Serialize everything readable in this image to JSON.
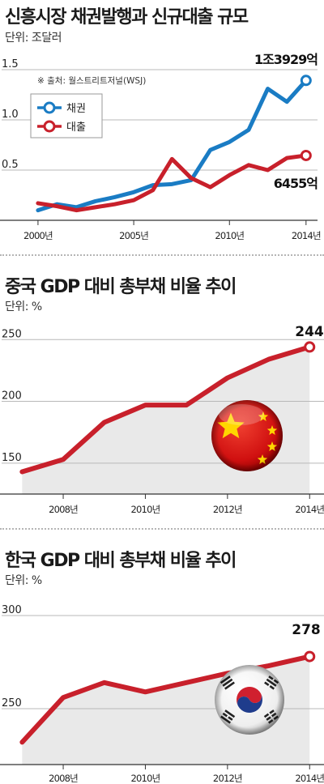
{
  "colors": {
    "bond": "#1a7cc4",
    "loan": "#c8202b",
    "debt": "#c8202b",
    "area": "#e9e9e9",
    "grid": "#b8b8b8"
  },
  "panel1": {
    "title": "신흥시장 채권발행과 신규대출 규모",
    "unit": "단위: 조달러",
    "source": "※ 출처: 월스트리트저널(WSJ)",
    "legend": [
      {
        "name": "채권"
      },
      {
        "name": "대출"
      }
    ],
    "labels": {
      "bond_end": "1조3929억",
      "loan_end": "6455억"
    }
  },
  "panel2": {
    "title": "중국 GDP 대비 총부채 비율 추이",
    "unit": "단위: %",
    "end_label": "244",
    "icon": "china-flag-icon"
  },
  "panel3": {
    "title": "한국 GDP 대비 총부채 비율 추이",
    "unit": "단위: %",
    "end_label": "278",
    "icon": "korea-flag-icon"
  },
  "chart_data": [
    {
      "type": "line",
      "title": "신흥시장 채권발행과 신규대출 규모",
      "x": [
        2000,
        2001,
        2002,
        2003,
        2004,
        2005,
        2006,
        2007,
        2008,
        2009,
        2010,
        2011,
        2012,
        2013,
        2014
      ],
      "xticks": [
        "2000년",
        "2005년",
        "2010년",
        "2014년"
      ],
      "xtick_values": [
        2000,
        2005,
        2010,
        2014
      ],
      "yticks": [
        "0.5",
        "1.0",
        "1.5"
      ],
      "ytick_values": [
        0.5,
        1.0,
        1.5
      ],
      "ylim": [
        0,
        1.5
      ],
      "xlim": [
        1999.2,
        2014.6
      ],
      "series": [
        {
          "name": "채권",
          "values": [
            0.1,
            0.16,
            0.13,
            0.19,
            0.23,
            0.28,
            0.35,
            0.36,
            0.4,
            0.7,
            0.78,
            0.9,
            1.31,
            1.18,
            1.3929
          ]
        },
        {
          "name": "대출",
          "values": [
            0.17,
            0.14,
            0.1,
            0.13,
            0.16,
            0.2,
            0.3,
            0.61,
            0.42,
            0.33,
            0.45,
            0.55,
            0.5,
            0.62,
            0.6455
          ]
        }
      ]
    },
    {
      "type": "area",
      "title": "중국 GDP 대비 총부채 비율 추이",
      "x": [
        2007,
        2008,
        2009,
        2010,
        2011,
        2012,
        2013,
        2014
      ],
      "xticks": [
        "2008년",
        "2010년",
        "2012년",
        "2014년"
      ],
      "xtick_values": [
        2008,
        2010,
        2012,
        2014
      ],
      "yticks": [
        "150",
        "200",
        "250"
      ],
      "ytick_values": [
        150,
        200,
        250
      ],
      "ylim": [
        125,
        260
      ],
      "xlim": [
        2006.5,
        2014.35
      ],
      "series": [
        {
          "name": "",
          "values": [
            143,
            153,
            183,
            197,
            197,
            219,
            234,
            244
          ]
        }
      ]
    },
    {
      "type": "area",
      "title": "한국 GDP 대비 총부채 비율 추이",
      "x": [
        2007,
        2008,
        2009,
        2010,
        2011,
        2012,
        2013,
        2014
      ],
      "xticks": [
        "2008년",
        "2010년",
        "2012년",
        "2014년"
      ],
      "xtick_values": [
        2008,
        2010,
        2012,
        2014
      ],
      "yticks": [
        "250",
        "300"
      ],
      "ytick_values": [
        250,
        300
      ],
      "ylim": [
        220,
        300
      ],
      "xlim": [
        2006.5,
        2014.35
      ],
      "series": [
        {
          "name": "",
          "values": [
            232,
            256,
            264,
            259,
            264,
            269,
            273,
            278
          ]
        }
      ]
    }
  ]
}
